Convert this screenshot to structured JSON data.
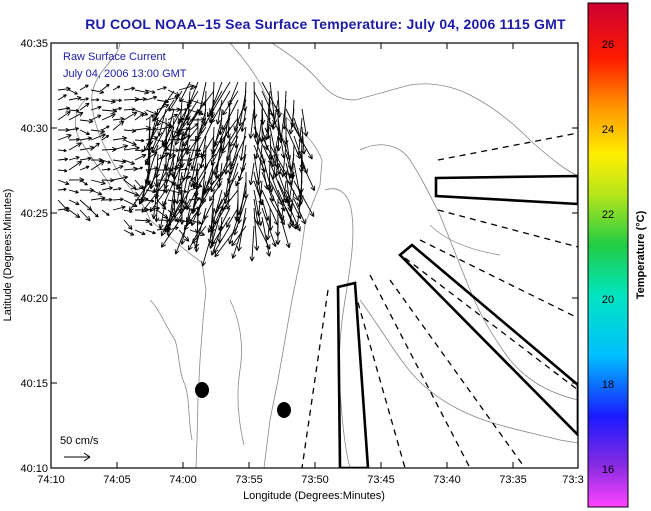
{
  "title": "RU COOL  NOAA–15  Sea Surface Temperature:  July 04, 2006 1115 GMT",
  "overlay": {
    "line1": "Raw Surface Current",
    "line2": "July 04, 2006 13:00 GMT",
    "color": "#1c1aa8"
  },
  "scale": {
    "label": "50 cm/s"
  },
  "axes": {
    "xlabel": "Longitude (Degrees:Minutes)",
    "ylabel": "Latitude (Degrees:Minutes)",
    "xticks": [
      "74:10",
      "74:05",
      "74:00",
      "73:55",
      "73:50",
      "73:45",
      "73:40",
      "73:35",
      "73:3"
    ],
    "yticks": [
      "40:35",
      "40:30",
      "40:25",
      "40:20",
      "40:15",
      "40:10"
    ]
  },
  "colorbar": {
    "label": "Temperature (°C)",
    "ticks": [
      "26",
      "24",
      "22",
      "20",
      "18",
      "16"
    ]
  },
  "colors": {
    "frame": "#000000",
    "title": "#1c1aa8",
    "bathymetry": "#888888"
  }
}
